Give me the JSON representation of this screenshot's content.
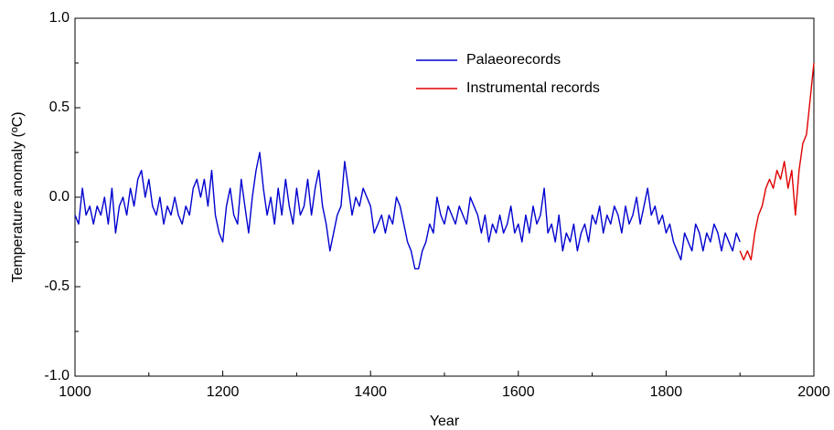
{
  "chart_data": {
    "type": "line",
    "xlabel": "Year",
    "ylabel": "Temperature anomaly (ºC)",
    "xlim": [
      1000,
      2000
    ],
    "ylim": [
      -1,
      1
    ],
    "xticks": [
      1000,
      1200,
      1400,
      1600,
      1800,
      2000
    ],
    "xminorticks": [
      1100,
      1300,
      1500,
      1700,
      1900
    ],
    "yticks": [
      {
        "value": -1,
        "label": "-1.0"
      },
      {
        "value": -0.5,
        "label": "-0.5"
      },
      {
        "value": 0,
        "label": "0.0"
      },
      {
        "value": 0.5,
        "label": "0.5"
      },
      {
        "value": 1,
        "label": "1.0"
      }
    ],
    "yminorticks": [
      -0.75,
      -0.25,
      0.25,
      0.75
    ],
    "legend": "upper center",
    "series": [
      {
        "name": "Palaeorecords",
        "color": "#0000d0",
        "x": [
          1000,
          1005,
          1010,
          1015,
          1020,
          1025,
          1030,
          1035,
          1040,
          1045,
          1050,
          1055,
          1060,
          1065,
          1070,
          1075,
          1080,
          1085,
          1090,
          1095,
          1100,
          1105,
          1110,
          1115,
          1120,
          1125,
          1130,
          1135,
          1140,
          1145,
          1150,
          1155,
          1160,
          1165,
          1170,
          1175,
          1180,
          1185,
          1190,
          1195,
          1200,
          1205,
          1210,
          1215,
          1220,
          1225,
          1230,
          1235,
          1240,
          1245,
          1250,
          1255,
          1260,
          1265,
          1270,
          1275,
          1280,
          1285,
          1290,
          1295,
          1300,
          1305,
          1310,
          1315,
          1320,
          1325,
          1330,
          1335,
          1340,
          1345,
          1350,
          1355,
          1360,
          1365,
          1370,
          1375,
          1380,
          1385,
          1390,
          1395,
          1400,
          1405,
          1410,
          1415,
          1420,
          1425,
          1430,
          1435,
          1440,
          1445,
          1450,
          1455,
          1460,
          1465,
          1470,
          1475,
          1480,
          1485,
          1490,
          1495,
          1500,
          1505,
          1510,
          1515,
          1520,
          1525,
          1530,
          1535,
          1540,
          1545,
          1550,
          1555,
          1560,
          1565,
          1570,
          1575,
          1580,
          1585,
          1590,
          1595,
          1600,
          1605,
          1610,
          1615,
          1620,
          1625,
          1630,
          1635,
          1640,
          1645,
          1650,
          1655,
          1660,
          1665,
          1670,
          1675,
          1680,
          1685,
          1690,
          1695,
          1700,
          1705,
          1710,
          1715,
          1720,
          1725,
          1730,
          1735,
          1740,
          1745,
          1750,
          1755,
          1760,
          1765,
          1770,
          1775,
          1780,
          1785,
          1790,
          1795,
          1800,
          1805,
          1810,
          1815,
          1820,
          1825,
          1830,
          1835,
          1840,
          1845,
          1850,
          1855,
          1860,
          1865,
          1870,
          1875,
          1880,
          1885,
          1890,
          1895,
          1900
        ],
        "values": [
          -0.1,
          -0.15,
          0.05,
          -0.1,
          -0.05,
          -0.15,
          -0.05,
          -0.1,
          0.0,
          -0.15,
          0.05,
          -0.2,
          -0.05,
          0.0,
          -0.1,
          0.05,
          -0.05,
          0.1,
          0.15,
          0.0,
          0.1,
          -0.05,
          -0.1,
          0.0,
          -0.15,
          -0.05,
          -0.1,
          0.0,
          -0.1,
          -0.15,
          -0.05,
          -0.1,
          0.05,
          0.1,
          0.0,
          0.1,
          -0.05,
          0.15,
          -0.1,
          -0.2,
          -0.25,
          -0.05,
          0.05,
          -0.1,
          -0.15,
          0.1,
          -0.05,
          -0.2,
          0.0,
          0.15,
          0.25,
          0.05,
          -0.1,
          0.0,
          -0.15,
          0.05,
          -0.1,
          0.1,
          -0.05,
          -0.15,
          0.05,
          -0.1,
          -0.05,
          0.1,
          -0.1,
          0.05,
          0.15,
          -0.05,
          -0.15,
          -0.3,
          -0.2,
          -0.1,
          -0.05,
          0.2,
          0.05,
          -0.1,
          0.0,
          -0.05,
          0.05,
          0.0,
          -0.05,
          -0.2,
          -0.15,
          -0.1,
          -0.2,
          -0.1,
          -0.15,
          0.0,
          -0.05,
          -0.15,
          -0.25,
          -0.3,
          -0.4,
          -0.4,
          -0.3,
          -0.25,
          -0.15,
          -0.2,
          0.0,
          -0.1,
          -0.15,
          -0.05,
          -0.1,
          -0.15,
          -0.05,
          -0.1,
          -0.15,
          0.0,
          -0.05,
          -0.1,
          -0.2,
          -0.1,
          -0.25,
          -0.15,
          -0.2,
          -0.1,
          -0.2,
          -0.15,
          -0.05,
          -0.2,
          -0.15,
          -0.25,
          -0.1,
          -0.2,
          -0.05,
          -0.15,
          -0.1,
          0.05,
          -0.2,
          -0.15,
          -0.25,
          -0.1,
          -0.3,
          -0.2,
          -0.25,
          -0.15,
          -0.3,
          -0.2,
          -0.15,
          -0.25,
          -0.1,
          -0.15,
          -0.05,
          -0.2,
          -0.1,
          -0.15,
          -0.05,
          -0.1,
          -0.2,
          -0.05,
          -0.15,
          -0.1,
          0.0,
          -0.15,
          -0.05,
          0.05,
          -0.1,
          -0.05,
          -0.15,
          -0.1,
          -0.2,
          -0.15,
          -0.25,
          -0.3,
          -0.35,
          -0.2,
          -0.25,
          -0.3,
          -0.15,
          -0.2,
          -0.3,
          -0.2,
          -0.25,
          -0.15,
          -0.2,
          -0.3,
          -0.2,
          -0.25,
          -0.3,
          -0.2,
          -0.25
        ]
      },
      {
        "name": "Instrumental records",
        "color": "#e00000",
        "x": [
          1900,
          1905,
          1910,
          1915,
          1920,
          1925,
          1930,
          1935,
          1940,
          1945,
          1950,
          1955,
          1960,
          1965,
          1970,
          1975,
          1980,
          1985,
          1990,
          1995,
          2000
        ],
        "values": [
          -0.3,
          -0.35,
          -0.3,
          -0.35,
          -0.2,
          -0.1,
          -0.05,
          0.05,
          0.1,
          0.05,
          0.15,
          0.1,
          0.2,
          0.05,
          0.15,
          -0.1,
          0.15,
          0.3,
          0.35,
          0.55,
          0.75
        ]
      }
    ]
  }
}
